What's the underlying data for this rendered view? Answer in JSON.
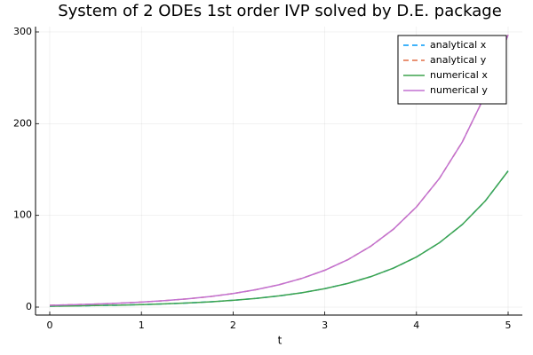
{
  "chart_data": {
    "type": "line",
    "title": "System of 2 ODEs 1st order IVP solved by D.E. package",
    "x_label": "t",
    "x": [
      0,
      0.25,
      0.5,
      0.75,
      1,
      1.25,
      1.5,
      1.75,
      2,
      2.25,
      2.5,
      2.75,
      3,
      3.25,
      3.5,
      3.75,
      4,
      4.25,
      4.5,
      4.75,
      5
    ],
    "series": [
      {
        "name": "analytical x",
        "color": "#009af9",
        "dash": true,
        "values": [
          1,
          1.28,
          1.65,
          2.12,
          2.72,
          3.49,
          4.48,
          5.75,
          7.39,
          9.49,
          12.18,
          15.64,
          20.09,
          25.79,
          33.12,
          42.52,
          54.6,
          70.11,
          90.02,
          115.58,
          148.41
        ]
      },
      {
        "name": "analytical y",
        "color": "#e26f46",
        "dash": true,
        "values": [
          2,
          2.57,
          3.3,
          4.23,
          5.44,
          6.98,
          8.96,
          11.5,
          14.78,
          18.98,
          24.36,
          31.28,
          40.17,
          51.58,
          66.24,
          85.04,
          109.2,
          140.22,
          180.03,
          231.17,
          296.83
        ]
      },
      {
        "name": "numerical x",
        "color": "#3da44d",
        "dash": false,
        "values": [
          1,
          1.28,
          1.65,
          2.12,
          2.72,
          3.49,
          4.48,
          5.75,
          7.39,
          9.49,
          12.18,
          15.64,
          20.09,
          25.79,
          33.12,
          42.52,
          54.6,
          70.11,
          90.02,
          115.58,
          148.41
        ]
      },
      {
        "name": "numerical y",
        "color": "#c271d2",
        "dash": false,
        "values": [
          2,
          2.57,
          3.3,
          4.23,
          5.44,
          6.98,
          8.96,
          11.5,
          14.78,
          18.98,
          24.36,
          31.28,
          40.17,
          51.58,
          66.24,
          85.04,
          109.2,
          140.22,
          180.03,
          231.17,
          296.83
        ]
      }
    ],
    "xlim": [
      -0.155,
      5.155
    ],
    "xticks": [
      0,
      1,
      2,
      3,
      4,
      5
    ],
    "ylim": [
      -8.7,
      305.8
    ],
    "yticks": [
      0,
      100,
      200,
      300
    ],
    "grid": true,
    "legend": "top-right"
  }
}
